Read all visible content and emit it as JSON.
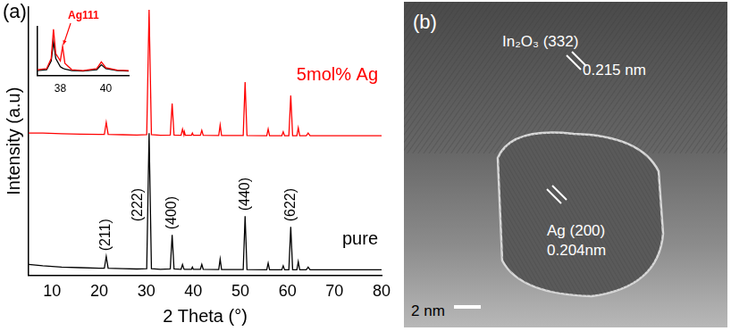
{
  "chart_data": [
    {
      "type": "line",
      "panel_label": "(a)",
      "x_label": "2 Theta (°)",
      "y_label": "Intensity (a.u)",
      "x": [
        5,
        8,
        12,
        16,
        20,
        21.1,
        21.5,
        21.9,
        25,
        28,
        30.1,
        30.6,
        31.1,
        33,
        35.1,
        35.5,
        35.9,
        37.4,
        37.7,
        38.0,
        38.1,
        38.3,
        39.6,
        39.8,
        40.0,
        41.5,
        41.8,
        42.1,
        45.4,
        45.7,
        46.0,
        50.6,
        51.0,
        51.4,
        55.6,
        55.9,
        56.2,
        58.8,
        59.1,
        59.4,
        60.3,
        60.7,
        61.1,
        62.0,
        62.3,
        62.6,
        64.0,
        64.4,
        64.8,
        70,
        75,
        80
      ],
      "series": [
        {
          "name": "5mol% Ag",
          "color": "#ff0000",
          "line_style": "solid",
          "values": [
            53,
            53,
            52.8,
            52.6,
            52.5,
            52.5,
            57,
            52.5,
            52.4,
            52.3,
            52.4,
            99,
            52.4,
            52.2,
            52.3,
            64,
            52.3,
            52.2,
            54.5,
            52.4,
            53.5,
            52.2,
            52.2,
            53,
            52.2,
            52.2,
            54,
            52.2,
            52.1,
            56,
            52.1,
            52.1,
            72,
            52.1,
            52,
            54.5,
            52,
            52,
            53.5,
            52,
            52,
            67,
            52,
            52,
            55,
            52,
            52,
            53,
            52,
            52,
            52,
            52
          ]
        },
        {
          "name": "pure",
          "color": "#000000",
          "line_style": "solid",
          "values": [
            4,
            3.5,
            3,
            2.8,
            2.6,
            2.6,
            7,
            2.6,
            2.4,
            2.3,
            2.4,
            53,
            2.4,
            2.2,
            2.3,
            15,
            2.3,
            2.2,
            4,
            2.3,
            2.2,
            2.2,
            2.2,
            3,
            2.2,
            2.2,
            4,
            2.2,
            2.1,
            6,
            2.1,
            2.1,
            22,
            2.1,
            2,
            4.5,
            2,
            2,
            3.5,
            2,
            2,
            18,
            2,
            2,
            5,
            2,
            2,
            3,
            2,
            2,
            2,
            2
          ]
        }
      ],
      "xlim": [
        5,
        80
      ],
      "xticks": [
        10,
        20,
        30,
        40,
        50,
        60,
        70,
        80
      ],
      "ylim": [
        0,
        100
      ],
      "tick_labels": "x",
      "grid": false,
      "annotations": [
        {
          "text": "(211)",
          "x": 21.5,
          "y": 9
        },
        {
          "text": "(222)",
          "x": 28.2,
          "y": 20
        },
        {
          "text": "(400)",
          "x": 35.5,
          "y": 17
        },
        {
          "text": "(440)",
          "x": 51,
          "y": 24
        },
        {
          "text": "(622)",
          "x": 60.7,
          "y": 20
        }
      ]
    },
    {
      "type": "line",
      "x": [
        37,
        37.4,
        37.6,
        37.7,
        37.8,
        38.0,
        38.1,
        38.2,
        38.5,
        39.0,
        39.6,
        39.8,
        40.0,
        40.5,
        41
      ],
      "series": [
        {
          "color": "#ff0000",
          "line_style": "solid",
          "values": [
            12,
            14,
            35,
            95,
            45,
            30,
            60,
            25,
            12,
            10,
            14,
            28,
            16,
            11,
            10
          ]
        },
        {
          "color": "#000000",
          "line_style": "solid",
          "values": [
            10,
            12,
            30,
            70,
            35,
            18,
            15,
            13,
            10,
            9,
            12,
            22,
            14,
            10,
            9
          ]
        }
      ],
      "xlim": [
        37,
        41
      ],
      "xticks": [
        38,
        40
      ],
      "ylim": [
        0,
        100
      ],
      "tick_labels": "x",
      "grid": false,
      "annotations": [
        {
          "text": "Ag111",
          "x": 38.1,
          "y": 60,
          "color": "#ff0000"
        }
      ]
    }
  ],
  "micrograph": {
    "panel_label": "(b)",
    "host_label": "In₂O₃ (332)",
    "host_spacing": "0.215 nm",
    "particle_label": "Ag (200)",
    "particle_spacing": "0.204nm",
    "scale_bar": "2 nm"
  }
}
